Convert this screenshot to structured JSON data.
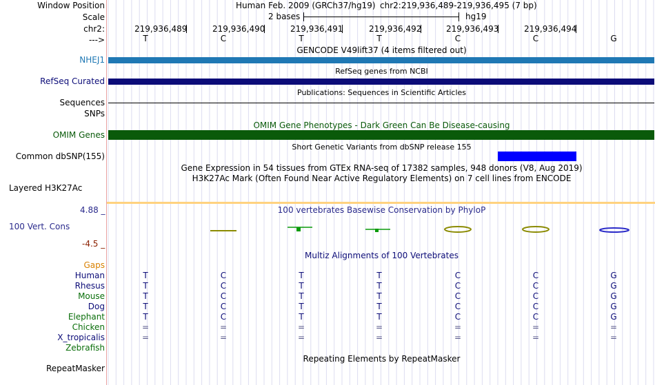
{
  "colors": {
    "nhej1": "#1f78b4",
    "refseq": "#0c0c78",
    "omim": "#0a5a0a",
    "snp_block": "#0000ff",
    "h3k27ac": "#ffd27f",
    "cons_high": "#ffffff",
    "cons_pos": "#0a6e0a",
    "cons_neg": "#8b2000",
    "gaps": "#d98000",
    "species_primate": "#0c0c78",
    "species_mammal": "#0a6e0a",
    "species_other": "#0c0c78"
  },
  "header": {
    "window_position_label": "Window Position",
    "scale_label": "Scale",
    "chrom_label": "chr2:",
    "arrow_label": "--->",
    "assembly_text": "Human Feb. 2009 (GRCh37/hg19)",
    "position_text": "chr2:219,936,489-219,936,495 (7 bp)",
    "scale_text": "2 bases",
    "scale_db": "hg19"
  },
  "ruler": {
    "positions": [
      "219,936,489",
      "219,936,490",
      "219,936,491",
      "219,936,492",
      "219,936,493",
      "219,936,494"
    ]
  },
  "sequence": {
    "bases": [
      "T",
      "C",
      "T",
      "T",
      "C",
      "C",
      "G"
    ]
  },
  "tracks": {
    "gencode_title": "GENCODE V49lift37 (4 items filtered out)",
    "nhej1_label": "NHEJ1",
    "refseq_title": "RefSeq genes from NCBI",
    "refseq_label": "RefSeq Curated",
    "publications_title": "Publications: Sequences in Scientific Articles",
    "sequences_label": "Sequences",
    "snps_label": "SNPs",
    "omim_title": "OMIM Gene Phenotypes - Dark Green Can Be Disease-causing",
    "omim_label": "OMIM Genes",
    "dbsnp_title": "Short Genetic Variants from dbSNP release 155",
    "dbsnp_label": "Common dbSNP(155)",
    "gtex_title": "Gene Expression in 54 tissues from GTEx RNA-seq of 17382 samples, 948 donors (V8, Aug 2019)",
    "h3k27ac_title": "H3K27Ac Mark (Often Found Near Active Regulatory Elements) on 7 cell lines from ENCODE",
    "h3k27ac_label": "Layered H3K27Ac",
    "phylop_title": "100 vertebrates Basewise Conservation by PhyloP",
    "phylop_label": "100 Vert. Cons",
    "phylop_max": "4.88 _",
    "phylop_min": "-4.5 _",
    "multiz_title": "Multiz Alignments of 100 Vertebrates",
    "gaps_label": "Gaps",
    "repeatmasker_title": "Repeating Elements by RepeatMasker",
    "repeatmasker_label": "RepeatMasker"
  },
  "alignment": {
    "species": [
      {
        "name": "Human",
        "bases": [
          "T",
          "C",
          "T",
          "T",
          "C",
          "C",
          "G"
        ]
      },
      {
        "name": "Rhesus",
        "bases": [
          "T",
          "C",
          "T",
          "T",
          "C",
          "C",
          "G"
        ]
      },
      {
        "name": "Mouse",
        "bases": [
          "T",
          "C",
          "T",
          "T",
          "C",
          "C",
          "G"
        ]
      },
      {
        "name": "Dog",
        "bases": [
          "T",
          "C",
          "T",
          "T",
          "C",
          "C",
          "G"
        ]
      },
      {
        "name": "Elephant",
        "bases": [
          "T",
          "C",
          "T",
          "T",
          "C",
          "C",
          "G"
        ]
      },
      {
        "name": "Chicken",
        "bases": [
          "=",
          "=",
          "=",
          "=",
          "=",
          "=",
          "="
        ]
      },
      {
        "name": "X_tropicalis",
        "bases": [
          "=",
          "=",
          "=",
          "=",
          "=",
          "=",
          "="
        ]
      },
      {
        "name": "Zebrafish",
        "bases": []
      }
    ]
  }
}
